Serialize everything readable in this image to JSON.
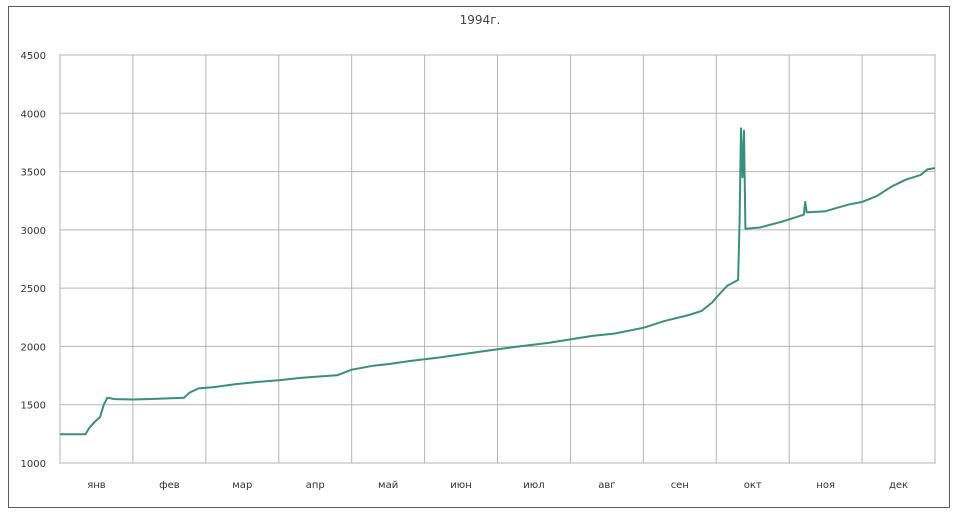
{
  "chart_data": {
    "type": "line",
    "title": "1994г.",
    "xlabel": "",
    "ylabel": "",
    "x_categories": [
      "янв",
      "фев",
      "мар",
      "апр",
      "май",
      "июн",
      "июл",
      "авг",
      "сен",
      "окт",
      "ноя",
      "дек"
    ],
    "x_range": [
      0,
      12
    ],
    "ylim": [
      1000,
      4500
    ],
    "y_ticks": [
      {
        "value": 1000,
        "label": "1000"
      },
      {
        "value": 1500,
        "label": "1500"
      },
      {
        "value": 2000,
        "label": "2000"
      },
      {
        "value": 2500,
        "label": "2500"
      },
      {
        "value": 3000,
        "label": "3000"
      },
      {
        "value": 3500,
        "label": "3500"
      },
      {
        "value": 4000,
        "label": "4000"
      },
      {
        "value": 4500,
        "label": "4500"
      }
    ],
    "grid": true,
    "line_color": "#3b8f7a",
    "series": [
      {
        "points": [
          [
            0.0,
            1247
          ],
          [
            0.35,
            1247
          ],
          [
            0.4,
            1300
          ],
          [
            0.47,
            1350
          ],
          [
            0.55,
            1395
          ],
          [
            0.6,
            1500
          ],
          [
            0.65,
            1560
          ],
          [
            0.75,
            1548
          ],
          [
            1.0,
            1545
          ],
          [
            1.3,
            1550
          ],
          [
            1.7,
            1560
          ],
          [
            1.78,
            1605
          ],
          [
            1.9,
            1640
          ],
          [
            2.1,
            1650
          ],
          [
            2.4,
            1675
          ],
          [
            2.7,
            1695
          ],
          [
            3.0,
            1710
          ],
          [
            3.3,
            1730
          ],
          [
            3.6,
            1745
          ],
          [
            3.8,
            1752
          ],
          [
            4.0,
            1800
          ],
          [
            4.3,
            1835
          ],
          [
            4.5,
            1848
          ],
          [
            4.8,
            1875
          ],
          [
            5.2,
            1905
          ],
          [
            5.6,
            1940
          ],
          [
            6.0,
            1975
          ],
          [
            6.3,
            2000
          ],
          [
            6.7,
            2030
          ],
          [
            7.0,
            2060
          ],
          [
            7.3,
            2090
          ],
          [
            7.6,
            2110
          ],
          [
            8.0,
            2160
          ],
          [
            8.3,
            2220
          ],
          [
            8.6,
            2265
          ],
          [
            8.8,
            2305
          ],
          [
            8.95,
            2380
          ],
          [
            9.0,
            2420
          ],
          [
            9.15,
            2520
          ],
          [
            9.3,
            2570
          ],
          [
            9.32,
            3080
          ],
          [
            9.34,
            3870
          ],
          [
            9.36,
            3450
          ],
          [
            9.38,
            3850
          ],
          [
            9.4,
            3010
          ],
          [
            9.6,
            3020
          ],
          [
            9.9,
            3070
          ],
          [
            10.2,
            3130
          ],
          [
            10.22,
            3240
          ],
          [
            10.24,
            3150
          ],
          [
            10.5,
            3160
          ],
          [
            10.8,
            3215
          ],
          [
            11.0,
            3240
          ],
          [
            11.2,
            3290
          ],
          [
            11.4,
            3370
          ],
          [
            11.6,
            3430
          ],
          [
            11.8,
            3470
          ],
          [
            11.9,
            3520
          ],
          [
            12.0,
            3530
          ]
        ]
      }
    ]
  }
}
